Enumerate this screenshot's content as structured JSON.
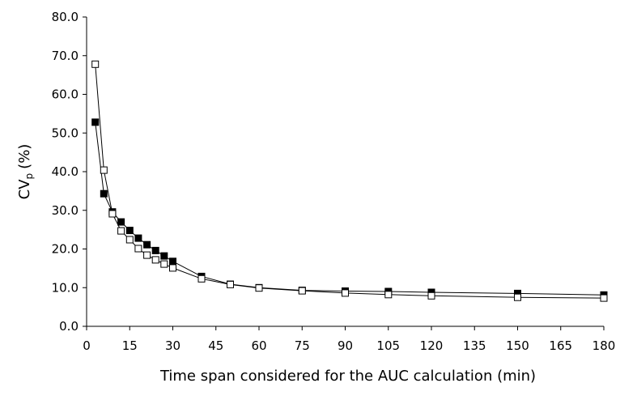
{
  "chart_data": {
    "type": "line",
    "xlabel": "Time span considered for the AUC calculation (min)",
    "ylabel_main": "CV",
    "ylabel_sub": "p",
    "ylabel_unit": "(%)",
    "xlim": [
      0,
      180
    ],
    "ylim": [
      0,
      80
    ],
    "x_ticks": [
      "0",
      "15",
      "30",
      "45",
      "60",
      "75",
      "90",
      "105",
      "120",
      "135",
      "150",
      "165",
      "180"
    ],
    "y_ticks": [
      "0.0",
      "10.0",
      "20.0",
      "30.0",
      "40.0",
      "50.0",
      "60.0",
      "70.0",
      "80.0"
    ],
    "grid": false,
    "series": [
      {
        "marker": "filled-square",
        "color": "#000000",
        "x": [
          3,
          6,
          9,
          12,
          15,
          18,
          21,
          24,
          27,
          30,
          40,
          50,
          60,
          75,
          90,
          105,
          120,
          150,
          180
        ],
        "y": [
          52.8,
          34.3,
          29.6,
          27.0,
          24.8,
          22.8,
          21.1,
          19.6,
          18.2,
          16.8,
          12.9,
          10.9,
          10.0,
          9.3,
          9.1,
          9.0,
          8.8,
          8.5,
          8.1
        ]
      },
      {
        "marker": "open-square",
        "color": "#000000",
        "x": [
          3,
          6,
          9,
          12,
          15,
          18,
          21,
          24,
          27,
          30,
          40,
          50,
          60,
          75,
          90,
          105,
          120,
          150,
          180
        ],
        "y": [
          67.8,
          40.4,
          29.1,
          24.7,
          22.4,
          20.1,
          18.4,
          17.2,
          16.1,
          15.1,
          12.3,
          10.8,
          9.9,
          9.2,
          8.6,
          8.2,
          7.9,
          7.5,
          7.3
        ]
      }
    ]
  }
}
